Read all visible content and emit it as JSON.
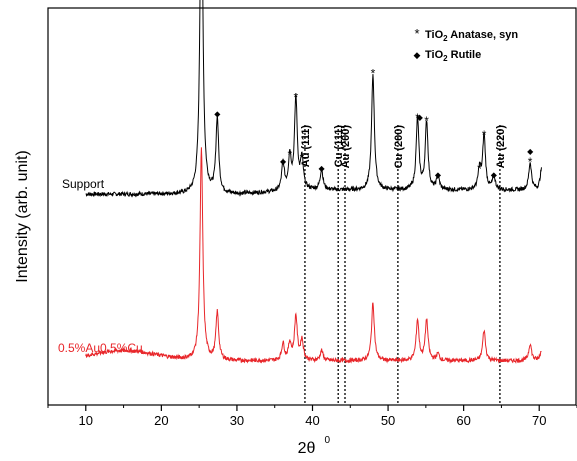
{
  "chart_data": {
    "type": "line",
    "xlabel": "2θ",
    "xlabel_sup": "0",
    "ylabel": "Intensity (arb. unit)",
    "xlim": [
      5,
      75
    ],
    "x_ticks": [
      10,
      20,
      30,
      40,
      50,
      60,
      70
    ],
    "y_ticks_shown": false,
    "grid": false,
    "legend_position": "top-right",
    "legend": [
      {
        "marker": "*",
        "text": "TiO",
        "sub": "2",
        "rest": " Anatase, syn"
      },
      {
        "marker": "◆",
        "text": "TiO",
        "sub": "2",
        "rest": " Rutile"
      }
    ],
    "series": [
      {
        "name": "Support",
        "color": "#000000",
        "baseline": 0.62,
        "baseline_rise_start": 30,
        "peaks": [
          {
            "x": 25.3,
            "height": 1.0
          },
          {
            "x": 27.4,
            "height": 0.22
          },
          {
            "x": 36.1,
            "height": 0.08
          },
          {
            "x": 37.0,
            "height": 0.1
          },
          {
            "x": 37.8,
            "height": 0.27
          },
          {
            "x": 38.6,
            "height": 0.09
          },
          {
            "x": 41.2,
            "height": 0.06
          },
          {
            "x": 48.0,
            "height": 0.34
          },
          {
            "x": 53.9,
            "height": 0.21
          },
          {
            "x": 55.1,
            "height": 0.2
          },
          {
            "x": 56.6,
            "height": 0.04
          },
          {
            "x": 62.1,
            "height": 0.06
          },
          {
            "x": 62.7,
            "height": 0.16
          },
          {
            "x": 64.0,
            "height": 0.04
          },
          {
            "x": 68.8,
            "height": 0.08
          },
          {
            "x": 70.3,
            "height": 0.06
          }
        ],
        "markers": [
          {
            "x": 25.3,
            "symbol": "*"
          },
          {
            "x": 27.4,
            "symbol": "◆"
          },
          {
            "x": 36.1,
            "symbol": "◆"
          },
          {
            "x": 37.0,
            "symbol": "*"
          },
          {
            "x": 37.8,
            "symbol": "*"
          },
          {
            "x": 38.6,
            "symbol": "*"
          },
          {
            "x": 41.2,
            "symbol": "◆"
          },
          {
            "x": 48.0,
            "symbol": "*"
          },
          {
            "x": 53.9,
            "symbol": "*"
          },
          {
            "x": 54.2,
            "symbol": "◆"
          },
          {
            "x": 55.1,
            "symbol": "*"
          },
          {
            "x": 56.6,
            "symbol": "◆"
          },
          {
            "x": 62.1,
            "symbol": "*"
          },
          {
            "x": 62.7,
            "symbol": "*"
          },
          {
            "x": 64.0,
            "symbol": "◆"
          },
          {
            "x": 68.8,
            "symbol": "*"
          },
          {
            "x": 68.8,
            "symbol": "◆"
          }
        ]
      },
      {
        "name": "0.5%Au0.5%Cu",
        "color": "#e8262a",
        "baseline": 0.13,
        "hump": {
          "center": 15,
          "width": 6,
          "height": 0.03
        },
        "peaks": [
          {
            "x": 25.3,
            "height": 0.62
          },
          {
            "x": 27.4,
            "height": 0.14
          },
          {
            "x": 36.1,
            "height": 0.05
          },
          {
            "x": 37.0,
            "height": 0.05
          },
          {
            "x": 37.8,
            "height": 0.13
          },
          {
            "x": 38.6,
            "height": 0.06
          },
          {
            "x": 41.2,
            "height": 0.03
          },
          {
            "x": 48.0,
            "height": 0.17
          },
          {
            "x": 53.9,
            "height": 0.12
          },
          {
            "x": 55.1,
            "height": 0.12
          },
          {
            "x": 56.6,
            "height": 0.02
          },
          {
            "x": 62.7,
            "height": 0.09
          },
          {
            "x": 68.8,
            "height": 0.05
          },
          {
            "x": 70.3,
            "height": 0.03
          }
        ]
      }
    ],
    "reference_lines": [
      {
        "x": 39.0,
        "label": "Au (111)"
      },
      {
        "x": 43.4,
        "label": "Cu (111)"
      },
      {
        "x": 44.3,
        "label": "Au (200)"
      },
      {
        "x": 51.3,
        "label": "Cu (200)"
      },
      {
        "x": 64.8,
        "label": "Au (220)"
      }
    ]
  }
}
